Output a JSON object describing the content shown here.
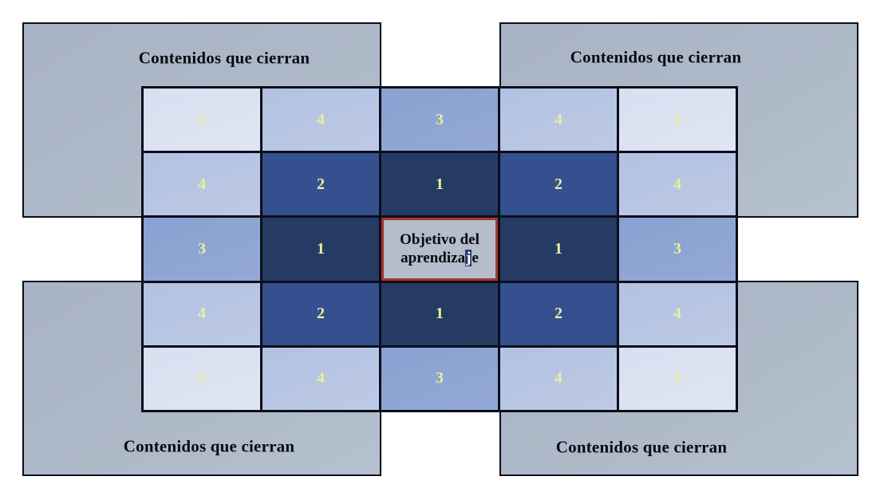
{
  "corners": [
    {
      "position": "top-left",
      "label": "Contenidos que cierran"
    },
    {
      "position": "top-right",
      "label": "Contenidos que cierran"
    },
    {
      "position": "bottom-left",
      "label": "Contenidos que cierran"
    },
    {
      "position": "bottom-right",
      "label": "Contenidos que cierran"
    }
  ],
  "grid": {
    "rows": 5,
    "cols": 5,
    "values": [
      [
        "5",
        "4",
        "3",
        "4",
        "5"
      ],
      [
        "4",
        "2",
        "1",
        "2",
        "4"
      ],
      [
        "3",
        "1",
        "center",
        "1",
        "3"
      ],
      [
        "4",
        "2",
        "1",
        "2",
        "4"
      ],
      [
        "5",
        "4",
        "3",
        "4",
        "5"
      ]
    ],
    "center": {
      "line1": "Objetivo del",
      "line2_before": "aprendiza",
      "line2_selected": "j",
      "line2_after": "e"
    }
  },
  "colors": {
    "value_1": "#253b64",
    "value_2": "#34508e",
    "value_3": "#8fa5d3",
    "value_4": "#b7c5e3",
    "value_5": "#dce2f1",
    "number_text": "#edf09d",
    "corner_fill": "#aeb9c8",
    "center_fill": "#b4bdcc",
    "center_border": "#a93430",
    "grid_line": "#0b0e1a",
    "selection_bg": "#2a3e6b",
    "selection_text": "#ffffff",
    "label_text": "#0a0a0f"
  }
}
